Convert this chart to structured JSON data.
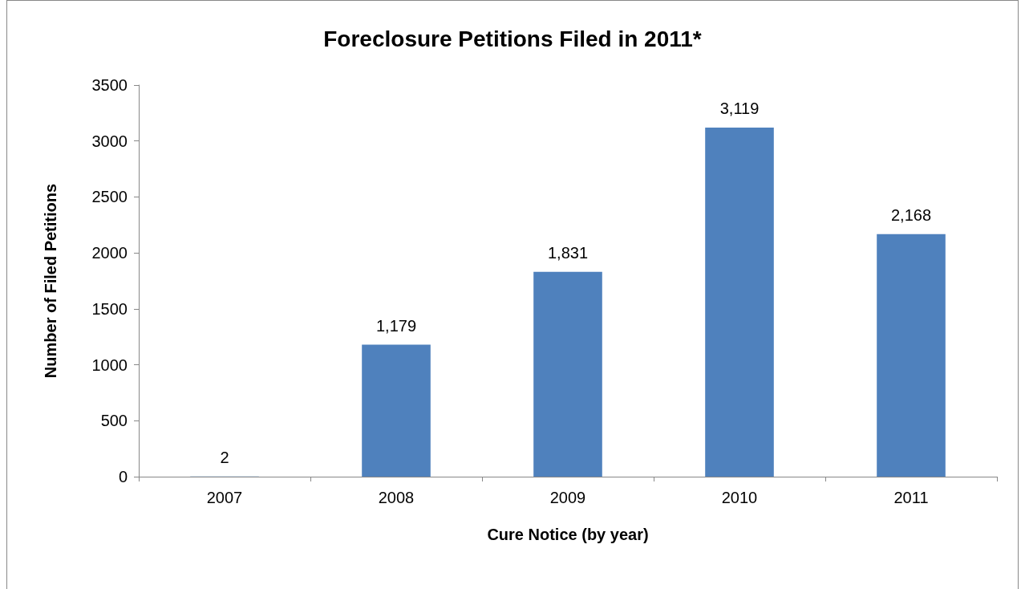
{
  "chart_data": {
    "type": "bar",
    "title": "Foreclosure Petitions Filed in 2011*",
    "xlabel": "Cure Notice (by year)",
    "ylabel": "Number of Filed Petitions",
    "categories": [
      "2007",
      "2008",
      "2009",
      "2010",
      "2011"
    ],
    "values": [
      2,
      1179,
      1831,
      3119,
      2168
    ],
    "value_labels": [
      "2",
      "1,179",
      "1,831",
      "3,119",
      "2,168"
    ],
    "color": "#4f81bd",
    "ylim": [
      0,
      3500
    ],
    "yticks": [
      0,
      500,
      1000,
      1500,
      2000,
      2500,
      3000,
      3500
    ],
    "grid": false
  }
}
